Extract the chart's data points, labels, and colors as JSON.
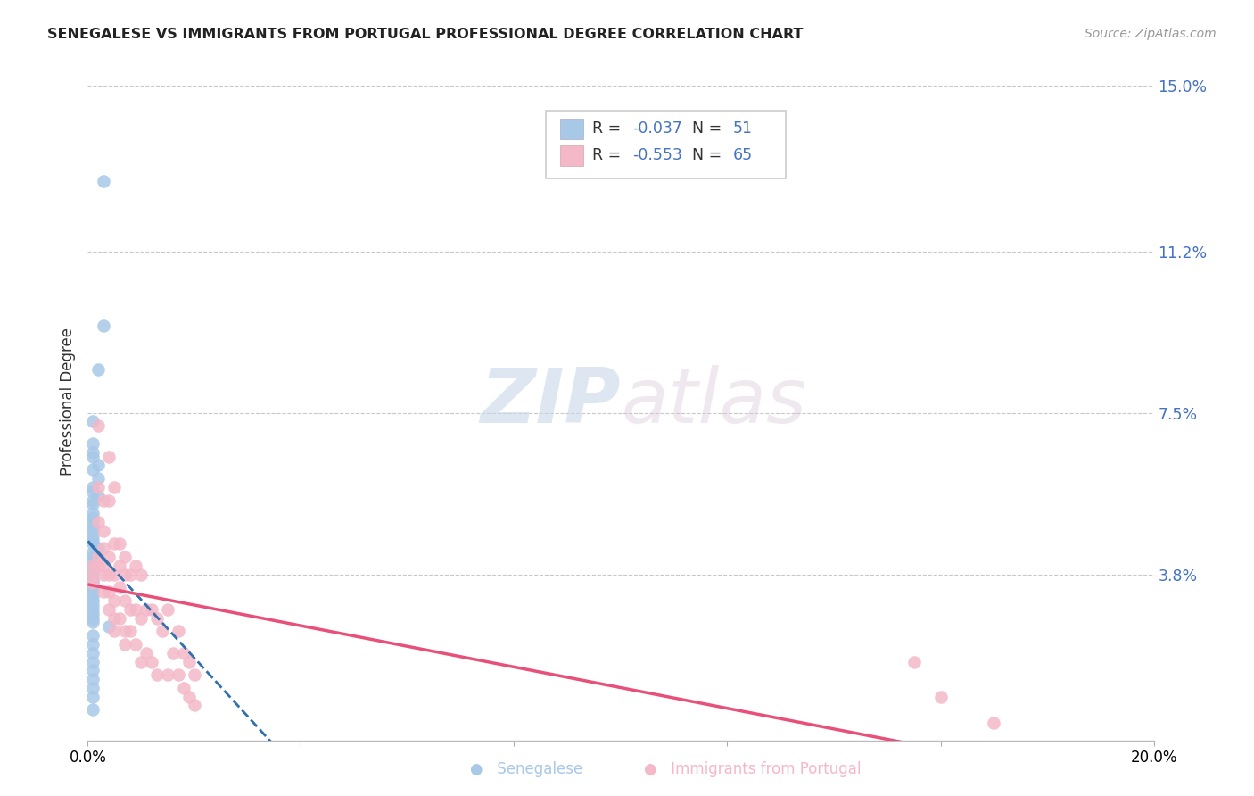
{
  "title": "SENEGALESE VS IMMIGRANTS FROM PORTUGAL PROFESSIONAL DEGREE CORRELATION CHART",
  "source": "Source: ZipAtlas.com",
  "ylabel": "Professional Degree",
  "xlim": [
    0.0,
    0.2
  ],
  "ylim": [
    0.0,
    0.155
  ],
  "xticks": [
    0.0,
    0.04,
    0.08,
    0.12,
    0.16,
    0.2
  ],
  "xticklabels": [
    "0.0%",
    "",
    "",
    "",
    "",
    "20.0%"
  ],
  "ytick_vals": [
    0.0,
    0.038,
    0.075,
    0.112,
    0.15
  ],
  "ytick_labels": [
    "",
    "3.8%",
    "7.5%",
    "11.2%",
    "15.0%"
  ],
  "series1_color": "#a8c8e8",
  "series2_color": "#f4b8c8",
  "series1_line_color": "#3070b0",
  "series2_line_color": "#e8507a",
  "R1": -0.037,
  "N1": 51,
  "R2": -0.553,
  "N2": 65,
  "background_color": "#ffffff",
  "grid_color": "#c8c8c8",
  "series1_x": [
    0.003,
    0.003,
    0.002,
    0.001,
    0.001,
    0.001,
    0.001,
    0.002,
    0.001,
    0.002,
    0.001,
    0.001,
    0.002,
    0.001,
    0.001,
    0.001,
    0.001,
    0.001,
    0.001,
    0.001,
    0.001,
    0.001,
    0.001,
    0.002,
    0.001,
    0.001,
    0.001,
    0.001,
    0.001,
    0.001,
    0.001,
    0.001,
    0.001,
    0.001,
    0.001,
    0.001,
    0.001,
    0.001,
    0.001,
    0.001,
    0.001,
    0.004,
    0.001,
    0.001,
    0.001,
    0.001,
    0.001,
    0.001,
    0.001,
    0.001,
    0.001
  ],
  "series1_y": [
    0.128,
    0.095,
    0.085,
    0.073,
    0.068,
    0.066,
    0.065,
    0.063,
    0.062,
    0.06,
    0.058,
    0.057,
    0.056,
    0.055,
    0.054,
    0.052,
    0.051,
    0.05,
    0.049,
    0.048,
    0.047,
    0.046,
    0.045,
    0.044,
    0.043,
    0.042,
    0.041,
    0.04,
    0.039,
    0.038,
    0.037,
    0.036,
    0.035,
    0.034,
    0.033,
    0.032,
    0.031,
    0.03,
    0.029,
    0.028,
    0.027,
    0.026,
    0.024,
    0.022,
    0.02,
    0.018,
    0.016,
    0.014,
    0.012,
    0.01,
    0.007
  ],
  "series2_x": [
    0.001,
    0.001,
    0.001,
    0.002,
    0.002,
    0.002,
    0.002,
    0.002,
    0.003,
    0.003,
    0.003,
    0.003,
    0.003,
    0.003,
    0.004,
    0.004,
    0.004,
    0.004,
    0.004,
    0.004,
    0.005,
    0.005,
    0.005,
    0.005,
    0.005,
    0.005,
    0.006,
    0.006,
    0.006,
    0.006,
    0.007,
    0.007,
    0.007,
    0.007,
    0.007,
    0.008,
    0.008,
    0.008,
    0.009,
    0.009,
    0.009,
    0.01,
    0.01,
    0.01,
    0.011,
    0.011,
    0.012,
    0.012,
    0.013,
    0.013,
    0.014,
    0.015,
    0.015,
    0.016,
    0.017,
    0.017,
    0.018,
    0.018,
    0.019,
    0.019,
    0.02,
    0.02,
    0.155,
    0.16,
    0.17
  ],
  "series2_y": [
    0.04,
    0.038,
    0.036,
    0.072,
    0.058,
    0.05,
    0.042,
    0.04,
    0.055,
    0.048,
    0.044,
    0.04,
    0.038,
    0.034,
    0.065,
    0.055,
    0.042,
    0.038,
    0.034,
    0.03,
    0.058,
    0.045,
    0.038,
    0.032,
    0.028,
    0.025,
    0.045,
    0.04,
    0.035,
    0.028,
    0.042,
    0.038,
    0.032,
    0.025,
    0.022,
    0.038,
    0.03,
    0.025,
    0.04,
    0.03,
    0.022,
    0.038,
    0.028,
    0.018,
    0.03,
    0.02,
    0.03,
    0.018,
    0.028,
    0.015,
    0.025,
    0.03,
    0.015,
    0.02,
    0.025,
    0.015,
    0.02,
    0.012,
    0.018,
    0.01,
    0.015,
    0.008,
    0.018,
    0.01,
    0.004
  ]
}
